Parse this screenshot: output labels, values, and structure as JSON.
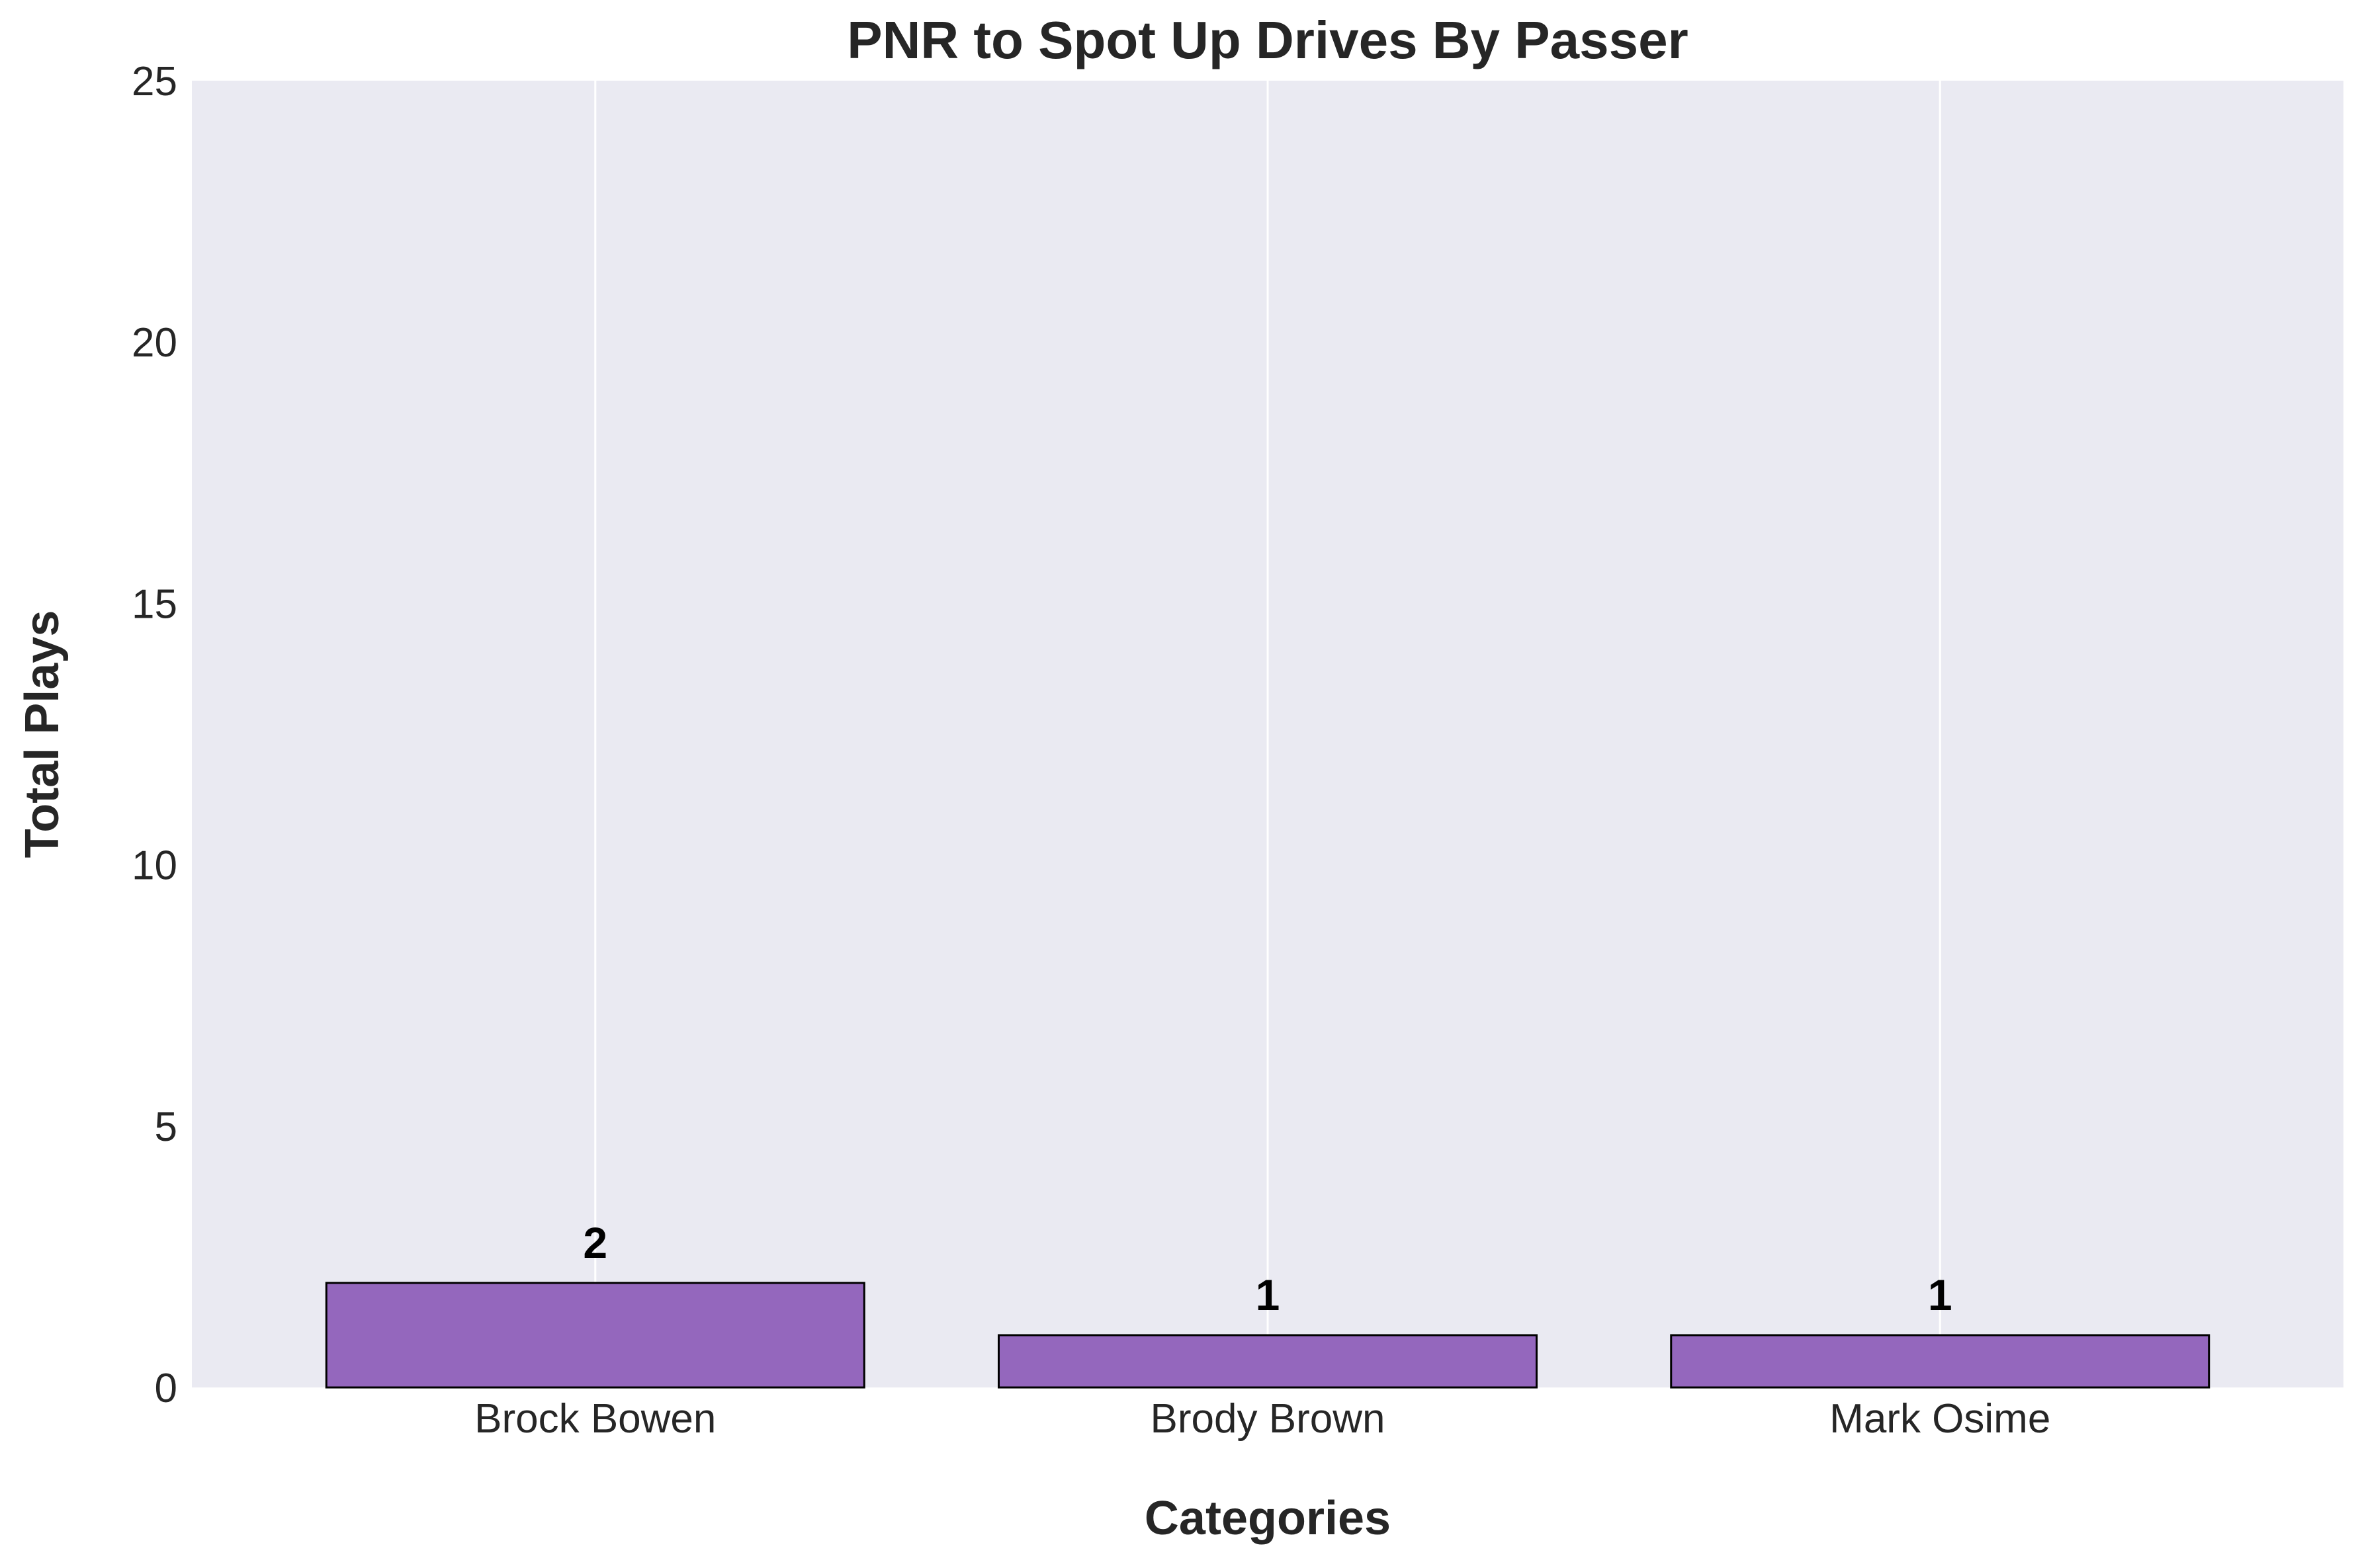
{
  "chart_data": {
    "type": "bar",
    "title": "PNR to Spot Up Drives By Passer",
    "xlabel": "Categories",
    "ylabel": "Total Plays",
    "categories": [
      "Brock Bowen",
      "Brody Brown",
      "Mark Osime"
    ],
    "values": [
      2,
      1,
      1
    ],
    "data_labels": [
      "2",
      "1",
      "1"
    ],
    "ylim": [
      0,
      25
    ],
    "yticks": [
      0,
      5,
      10,
      15,
      20,
      25
    ],
    "ytick_labels": [
      "0",
      "5",
      "10",
      "15",
      "20",
      "25"
    ],
    "grid": "vertical",
    "legend": "none",
    "colors": {
      "bar_fill": "#9467bd",
      "bar_edge": "#000000",
      "plot_background": "#eaeaf2",
      "grid": "#ffffff"
    }
  }
}
